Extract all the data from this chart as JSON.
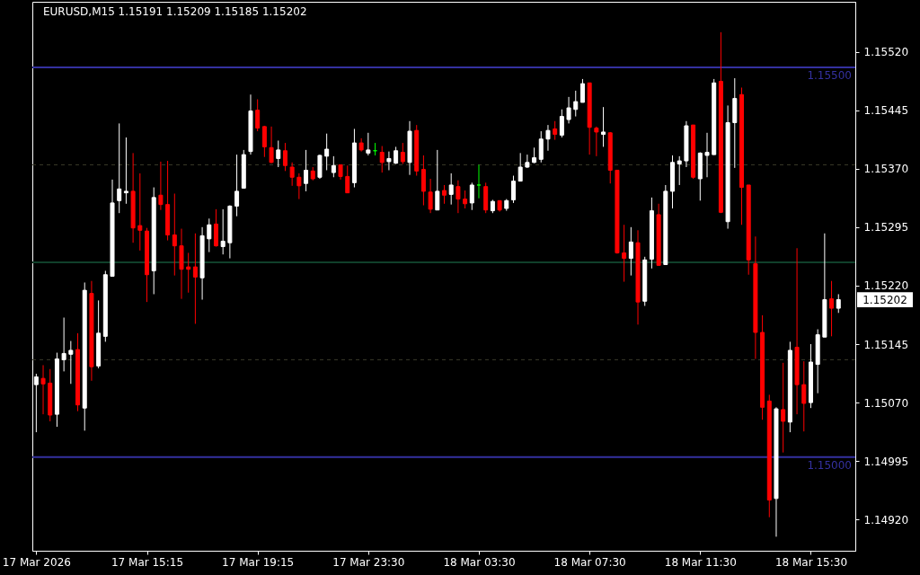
{
  "chart_data": {
    "type": "candlestick",
    "title": "EURUSD,M15 1.15191 1.15209 1.15185 1.15202",
    "categories": [
      "17 Mar 2026",
      null,
      null,
      null,
      null,
      null,
      null,
      null,
      null,
      null,
      null,
      null,
      null,
      null,
      null,
      null,
      "17 Mar 15:15",
      null,
      null,
      null,
      null,
      null,
      null,
      null,
      null,
      null,
      null,
      null,
      null,
      null,
      null,
      null,
      "17 Mar 19:15",
      null,
      null,
      null,
      null,
      null,
      null,
      null,
      null,
      null,
      null,
      null,
      null,
      null,
      null,
      null,
      "17 Mar 23:30",
      null,
      null,
      null,
      null,
      null,
      null,
      null,
      null,
      null,
      null,
      null,
      null,
      null,
      null,
      null,
      "18 Mar 03:30",
      null,
      null,
      null,
      null,
      null,
      null,
      null,
      null,
      null,
      null,
      null,
      null,
      null,
      null,
      null,
      "18 Mar 07:30",
      null,
      null,
      null,
      null,
      null,
      null,
      null,
      null,
      null,
      null,
      null,
      null,
      null,
      null,
      null,
      "18 Mar 11:30",
      null,
      null,
      null,
      null,
      null,
      null,
      null,
      null,
      null,
      null,
      null,
      null,
      null,
      null,
      null,
      "18 Mar 15:30",
      null,
      null,
      null,
      null
    ],
    "ohlc": [
      [
        1.15093,
        1.15107,
        1.15032,
        1.15103
      ],
      [
        1.15101,
        1.15118,
        1.15055,
        1.15094
      ],
      [
        1.15095,
        1.15113,
        1.15046,
        1.15054
      ],
      [
        1.15055,
        1.15134,
        1.15039,
        1.15126
      ],
      [
        1.15125,
        1.15179,
        1.1511,
        1.15133
      ],
      [
        1.15132,
        1.15149,
        1.15094,
        1.15137
      ],
      [
        1.15138,
        1.15159,
        1.15059,
        1.15067
      ],
      [
        1.15063,
        1.15224,
        1.15034,
        1.15214
      ],
      [
        1.1521,
        1.15226,
        1.15098,
        1.15116
      ],
      [
        1.15117,
        1.15201,
        1.15114,
        1.15159
      ],
      [
        1.15155,
        1.15239,
        1.15148,
        1.15234
      ],
      [
        1.15232,
        1.15356,
        1.15232,
        1.15326
      ],
      [
        1.15329,
        1.15428,
        1.15313,
        1.15344
      ],
      [
        1.15339,
        1.1541,
        1.15325,
        1.15341
      ],
      [
        1.15341,
        1.1539,
        1.15275,
        1.15294
      ],
      [
        1.15297,
        1.15364,
        1.15265,
        1.15291
      ],
      [
        1.1529,
        1.15294,
        1.15199,
        1.15234
      ],
      [
        1.15239,
        1.15346,
        1.15209,
        1.15333
      ],
      [
        1.15336,
        1.15379,
        1.15317,
        1.15324
      ],
      [
        1.15324,
        1.1538,
        1.15278,
        1.15285
      ],
      [
        1.15285,
        1.15338,
        1.15233,
        1.15271
      ],
      [
        1.15271,
        1.15293,
        1.15203,
        1.15241
      ],
      [
        1.15244,
        1.15262,
        1.15211,
        1.15241
      ],
      [
        1.15244,
        1.15287,
        1.15171,
        1.15231
      ],
      [
        1.1523,
        1.15295,
        1.15202,
        1.15284
      ],
      [
        1.1528,
        1.15306,
        1.15263,
        1.15298
      ],
      [
        1.15299,
        1.15318,
        1.1527,
        1.15271
      ],
      [
        1.1527,
        1.15318,
        1.1526,
        1.15277
      ],
      [
        1.15275,
        1.15323,
        1.15255,
        1.15322
      ],
      [
        1.15322,
        1.15388,
        1.15309,
        1.15341
      ],
      [
        1.15345,
        1.15394,
        1.15345,
        1.15388
      ],
      [
        1.15392,
        1.15465,
        1.15388,
        1.15444
      ],
      [
        1.15445,
        1.15459,
        1.15418,
        1.15422
      ],
      [
        1.15424,
        1.15425,
        1.15385,
        1.15398
      ],
      [
        1.15397,
        1.15424,
        1.15377,
        1.15378
      ],
      [
        1.15383,
        1.15406,
        1.15372,
        1.15394
      ],
      [
        1.15393,
        1.15403,
        1.15367,
        1.15374
      ],
      [
        1.15372,
        1.15378,
        1.15348,
        1.15359
      ],
      [
        1.15359,
        1.15364,
        1.15331,
        1.15348
      ],
      [
        1.15351,
        1.15394,
        1.15341,
        1.15368
      ],
      [
        1.15367,
        1.15372,
        1.15355,
        1.15357
      ],
      [
        1.15359,
        1.15388,
        1.15357,
        1.15387
      ],
      [
        1.15386,
        1.15415,
        1.15368,
        1.15395
      ],
      [
        1.15365,
        1.15386,
        1.15359,
        1.15374
      ],
      [
        1.15375,
        1.15375,
        1.15356,
        1.1536
      ],
      [
        1.1536,
        1.15374,
        1.15339,
        1.15339
      ],
      [
        1.15352,
        1.15421,
        1.15346,
        1.15403
      ],
      [
        1.15403,
        1.15409,
        1.15392,
        1.15394
      ],
      [
        1.1539,
        1.15416,
        1.15387,
        1.15394
      ],
      [
        1.15393,
        1.15403,
        1.15387,
        1.15393
      ],
      [
        1.15391,
        1.15399,
        1.15365,
        1.15378
      ],
      [
        1.15379,
        1.15392,
        1.15368,
        1.15383
      ],
      [
        1.15377,
        1.15398,
        1.15376,
        1.15393
      ],
      [
        1.15391,
        1.15403,
        1.15376,
        1.15379
      ],
      [
        1.15378,
        1.15431,
        1.15362,
        1.15418
      ],
      [
        1.15419,
        1.15426,
        1.15361,
        1.15367
      ],
      [
        1.15369,
        1.15387,
        1.15323,
        1.15341
      ],
      [
        1.1534,
        1.15357,
        1.15313,
        1.15318
      ],
      [
        1.15317,
        1.15394,
        1.15317,
        1.15341
      ],
      [
        1.15342,
        1.15349,
        1.15325,
        1.15336
      ],
      [
        1.15337,
        1.15364,
        1.15324,
        1.15349
      ],
      [
        1.15347,
        1.15355,
        1.15313,
        1.15331
      ],
      [
        1.15331,
        1.15342,
        1.15319,
        1.15325
      ],
      [
        1.15326,
        1.15352,
        1.15317,
        1.15349
      ],
      [
        1.15349,
        1.15375,
        1.15332,
        1.15349
      ],
      [
        1.15347,
        1.15352,
        1.15313,
        1.15317
      ],
      [
        1.15316,
        1.1533,
        1.15313,
        1.15328
      ],
      [
        1.15329,
        1.15329,
        1.15315,
        1.15317
      ],
      [
        1.15319,
        1.15331,
        1.15316,
        1.15329
      ],
      [
        1.1533,
        1.15361,
        1.15326,
        1.15354
      ],
      [
        1.15354,
        1.1539,
        1.15354,
        1.15372
      ],
      [
        1.15372,
        1.15388,
        1.15371,
        1.15378
      ],
      [
        1.15378,
        1.15397,
        1.15377,
        1.15384
      ],
      [
        1.15382,
        1.15418,
        1.15378,
        1.15408
      ],
      [
        1.15408,
        1.15426,
        1.15393,
        1.15419
      ],
      [
        1.15421,
        1.15431,
        1.15407,
        1.15414
      ],
      [
        1.15413,
        1.15446,
        1.1541,
        1.15437
      ],
      [
        1.15433,
        1.15462,
        1.15428,
        1.15448
      ],
      [
        1.15446,
        1.1547,
        1.15437,
        1.15456
      ],
      [
        1.15455,
        1.15485,
        1.15455,
        1.15479
      ],
      [
        1.1548,
        1.1548,
        1.15388,
        1.15423
      ],
      [
        1.15422,
        1.15424,
        1.15386,
        1.15417
      ],
      [
        1.15414,
        1.15449,
        1.15398,
        1.15417
      ],
      [
        1.15416,
        1.15417,
        1.15351,
        1.15368
      ],
      [
        1.15368,
        1.15368,
        1.15261,
        1.15262
      ],
      [
        1.15262,
        1.15298,
        1.15225,
        1.15255
      ],
      [
        1.15255,
        1.15295,
        1.15233,
        1.15276
      ],
      [
        1.15275,
        1.15291,
        1.1517,
        1.15199
      ],
      [
        1.152,
        1.15257,
        1.15194,
        1.15253
      ],
      [
        1.15254,
        1.15333,
        1.15242,
        1.15316
      ],
      [
        1.15311,
        1.15325,
        1.15246,
        1.15246
      ],
      [
        1.15247,
        1.15349,
        1.15247,
        1.15341
      ],
      [
        1.15341,
        1.15387,
        1.15319,
        1.15378
      ],
      [
        1.15376,
        1.15386,
        1.15349,
        1.1538
      ],
      [
        1.1538,
        1.15431,
        1.15372,
        1.15425
      ],
      [
        1.15426,
        1.15426,
        1.15357,
        1.15359
      ],
      [
        1.15357,
        1.15391,
        1.15329,
        1.1539
      ],
      [
        1.15387,
        1.15416,
        1.15359,
        1.15391
      ],
      [
        1.15388,
        1.15485,
        1.15388,
        1.1548
      ],
      [
        1.15482,
        1.15545,
        1.15313,
        1.15314
      ],
      [
        1.15302,
        1.15451,
        1.15293,
        1.15429
      ],
      [
        1.15429,
        1.15486,
        1.15371,
        1.1546
      ],
      [
        1.15465,
        1.15474,
        1.15298,
        1.15346
      ],
      [
        1.15349,
        1.15349,
        1.15234,
        1.15253
      ],
      [
        1.15248,
        1.15283,
        1.15126,
        1.1516
      ],
      [
        1.1516,
        1.15182,
        1.15048,
        1.15064
      ],
      [
        1.15072,
        1.1508,
        1.14923,
        1.14945
      ],
      [
        1.14947,
        1.15064,
        1.14898,
        1.15062
      ],
      [
        1.15061,
        1.15121,
        1.15006,
        1.15046
      ],
      [
        1.15045,
        1.15148,
        1.15032,
        1.15137
      ],
      [
        1.15141,
        1.15268,
        1.15055,
        1.15093
      ],
      [
        1.15093,
        1.15123,
        1.15033,
        1.15069
      ],
      [
        1.1507,
        1.15145,
        1.15063,
        1.15122
      ],
      [
        1.15119,
        1.15164,
        1.15082,
        1.15157
      ],
      [
        1.15154,
        1.15287,
        1.15154,
        1.15202
      ],
      [
        1.15203,
        1.15226,
        1.15155,
        1.15191
      ],
      [
        1.15191,
        1.15209,
        1.15185,
        1.15202
      ]
    ],
    "colors": [
      "#ffffff",
      "#ff0000",
      "#ff0000",
      "#ffffff",
      "#ffffff",
      "#ffffff",
      "#ff0000",
      "#ffffff",
      "#ff0000",
      "#ffffff",
      "#ffffff",
      "#ffffff",
      "#ffffff",
      "#ffffff",
      "#ff0000",
      "#ff0000",
      "#ff0000",
      "#ffffff",
      "#ff0000",
      "#ff0000",
      "#ff0000",
      "#ff0000",
      "#ff0000",
      "#ff0000",
      "#ffffff",
      "#ffffff",
      "#ff0000",
      "#ffffff",
      "#ffffff",
      "#ffffff",
      "#ffffff",
      "#ffffff",
      "#ff0000",
      "#ff0000",
      "#ff0000",
      "#ffffff",
      "#ff0000",
      "#ff0000",
      "#ff0000",
      "#ffffff",
      "#ff0000",
      "#ffffff",
      "#ffffff",
      "#ffffff",
      "#ff0000",
      "#ff0000",
      "#ffffff",
      "#ff0000",
      "#ffffff",
      "#00ff00",
      "#ff0000",
      "#ffffff",
      "#ffffff",
      "#ff0000",
      "#ffffff",
      "#ff0000",
      "#ff0000",
      "#ff0000",
      "#ffffff",
      "#ff0000",
      "#ffffff",
      "#ff0000",
      "#ff0000",
      "#ffffff",
      "#00ff00",
      "#ff0000",
      "#ffffff",
      "#ff0000",
      "#ffffff",
      "#ffffff",
      "#ffffff",
      "#ffffff",
      "#ffffff",
      "#ffffff",
      "#ffffff",
      "#ff0000",
      "#ffffff",
      "#ffffff",
      "#ffffff",
      "#ffffff",
      "#ff0000",
      "#ff0000",
      "#ffffff",
      "#ff0000",
      "#ff0000",
      "#ff0000",
      "#ffffff",
      "#ff0000",
      "#ffffff",
      "#ffffff",
      "#ff0000",
      "#ffffff",
      "#ffffff",
      "#ffffff",
      "#ffffff",
      "#ff0000",
      "#ffffff",
      "#ffffff",
      "#ffffff",
      "#ff0000",
      "#ffffff",
      "#ffffff",
      "#ff0000",
      "#ff0000",
      "#ff0000",
      "#ff0000",
      "#ff0000",
      "#ffffff",
      "#ff0000",
      "#ffffff",
      "#ff0000",
      "#ff0000",
      "#ffffff",
      "#ffffff",
      "#ffffff",
      "#ff0000",
      "#ffffff"
    ],
    "ylim": [
      1.1488,
      1.15584
    ],
    "yticks": [
      {
        "value": 1.1492,
        "label": "1.14920"
      },
      1.14995,
      {
        "value": 1.1507,
        "label": "1.15070"
      },
      1.15145,
      {
        "value": 1.1522,
        "label": "1.15220"
      },
      1.15295,
      {
        "value": 1.1537,
        "label": "1.15370"
      },
      1.15445,
      {
        "value": 1.1552,
        "label": "1.15520"
      }
    ],
    "ref_lines": [
      {
        "axis": "y",
        "value": 1.155,
        "label": "1.15500",
        "color": "#3431a0"
      },
      {
        "axis": "y",
        "value": 1.15375,
        "color": "#3c3c2a",
        "line_style": "dashed"
      },
      {
        "axis": "y",
        "value": 1.1525,
        "color": "#10402a"
      },
      {
        "axis": "y",
        "value": 1.15125,
        "color": "#3c3c2a",
        "line_style": "dashed"
      },
      {
        "axis": "y",
        "value": 1.15,
        "label": "1.15000",
        "color": "#3431a0"
      }
    ],
    "annotations": [
      "1.15202"
    ]
  }
}
